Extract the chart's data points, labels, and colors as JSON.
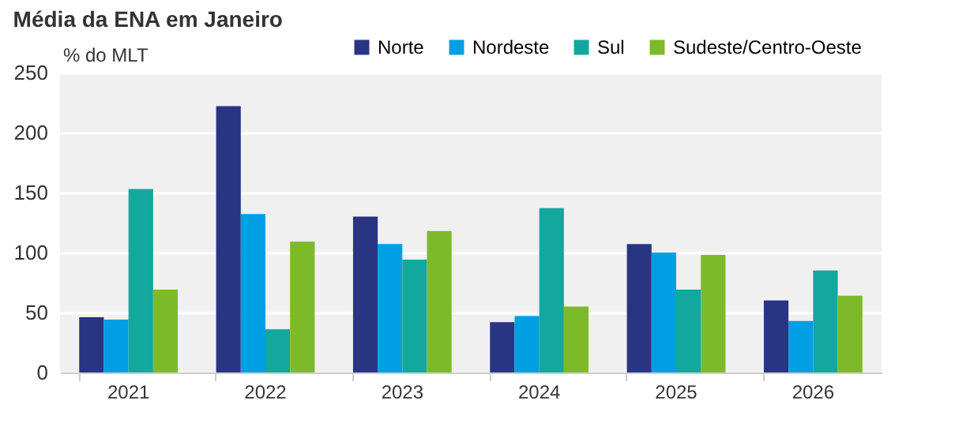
{
  "chart_data": {
    "type": "bar",
    "title": "Média da ENA em Janeiro",
    "ylabel": "% do MLT",
    "categories": [
      "2021",
      "2022",
      "2023",
      "2024",
      "2025",
      "2026"
    ],
    "series": [
      {
        "name": "Norte",
        "color": "#283583",
        "values": [
          46,
          222,
          130,
          42,
          107,
          60
        ]
      },
      {
        "name": "Nordeste",
        "color": "#009fe3",
        "values": [
          44,
          132,
          107,
          47,
          100,
          43
        ]
      },
      {
        "name": "Sul",
        "color": "#13a89e",
        "values": [
          153,
          36,
          94,
          137,
          69,
          85
        ]
      },
      {
        "name": "Sudeste/Centro-Oeste",
        "color": "#7dba2a",
        "values": [
          69,
          109,
          118,
          55,
          98,
          64
        ]
      }
    ],
    "ylim": [
      0,
      250
    ],
    "yticks": [
      0,
      50,
      100,
      150,
      200,
      250
    ],
    "grid": "y",
    "legend": "top right"
  }
}
